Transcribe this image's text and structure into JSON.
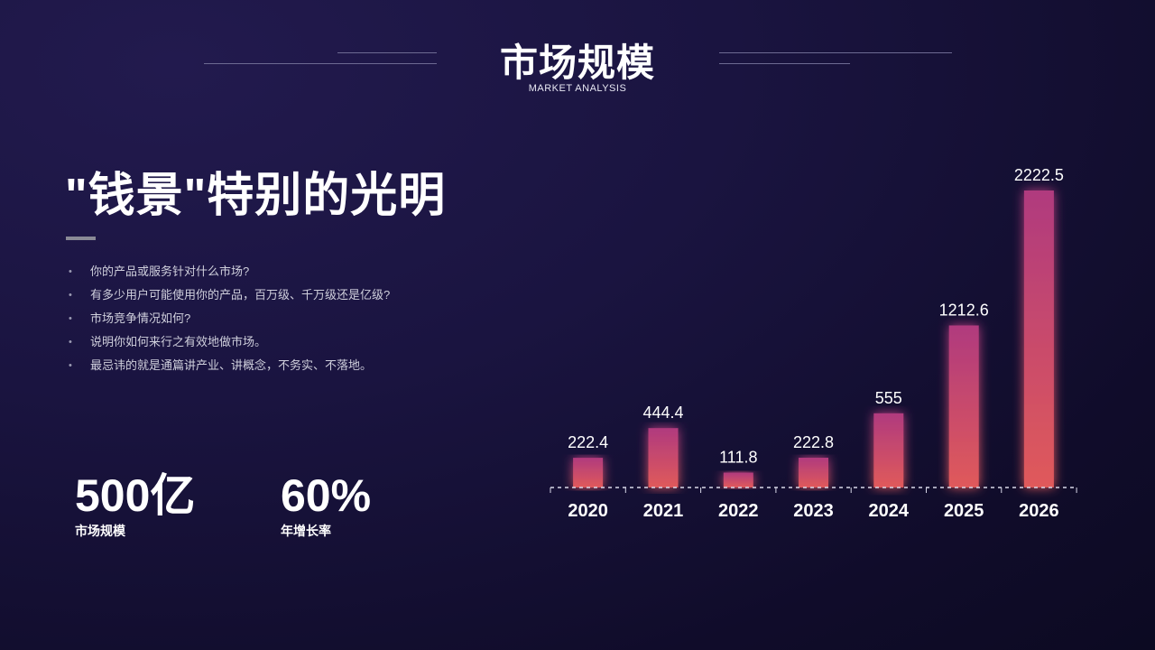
{
  "header": {
    "title": "市场规模",
    "subtitle": "MARKET ANALYSIS"
  },
  "content": {
    "headline": "\"钱景\"特别的光明",
    "bullets": [
      "你的产品或服务针对什么市场?",
      "有多少用户可能使用你的产品，百万级、千万级还是亿级?",
      "市场竞争情况如何?",
      "说明你如何来行之有效地做市场。",
      "最忌讳的就是通篇讲产业、讲概念，不务实、不落地。"
    ]
  },
  "stats": [
    {
      "value": "500亿",
      "label": "市场规模"
    },
    {
      "value": "60%",
      "label": "年增长率"
    }
  ],
  "colors": {
    "bar_top": "#b03a7e",
    "bar_bottom": "#e05a5a",
    "axis": "#d8d8e8"
  },
  "chart_data": {
    "type": "bar",
    "categories": [
      "2020",
      "2021",
      "2022",
      "2023",
      "2024",
      "2025",
      "2026"
    ],
    "values": [
      222.4,
      444.4,
      111.8,
      222.8,
      555,
      1212.6,
      2222.5
    ],
    "data_labels": [
      "222.4",
      "444.4",
      "111.8",
      "222.8",
      "555",
      "1212.6",
      "2222.5"
    ],
    "ylim": [
      0,
      2222.5
    ],
    "grid": false,
    "legend": "none"
  }
}
